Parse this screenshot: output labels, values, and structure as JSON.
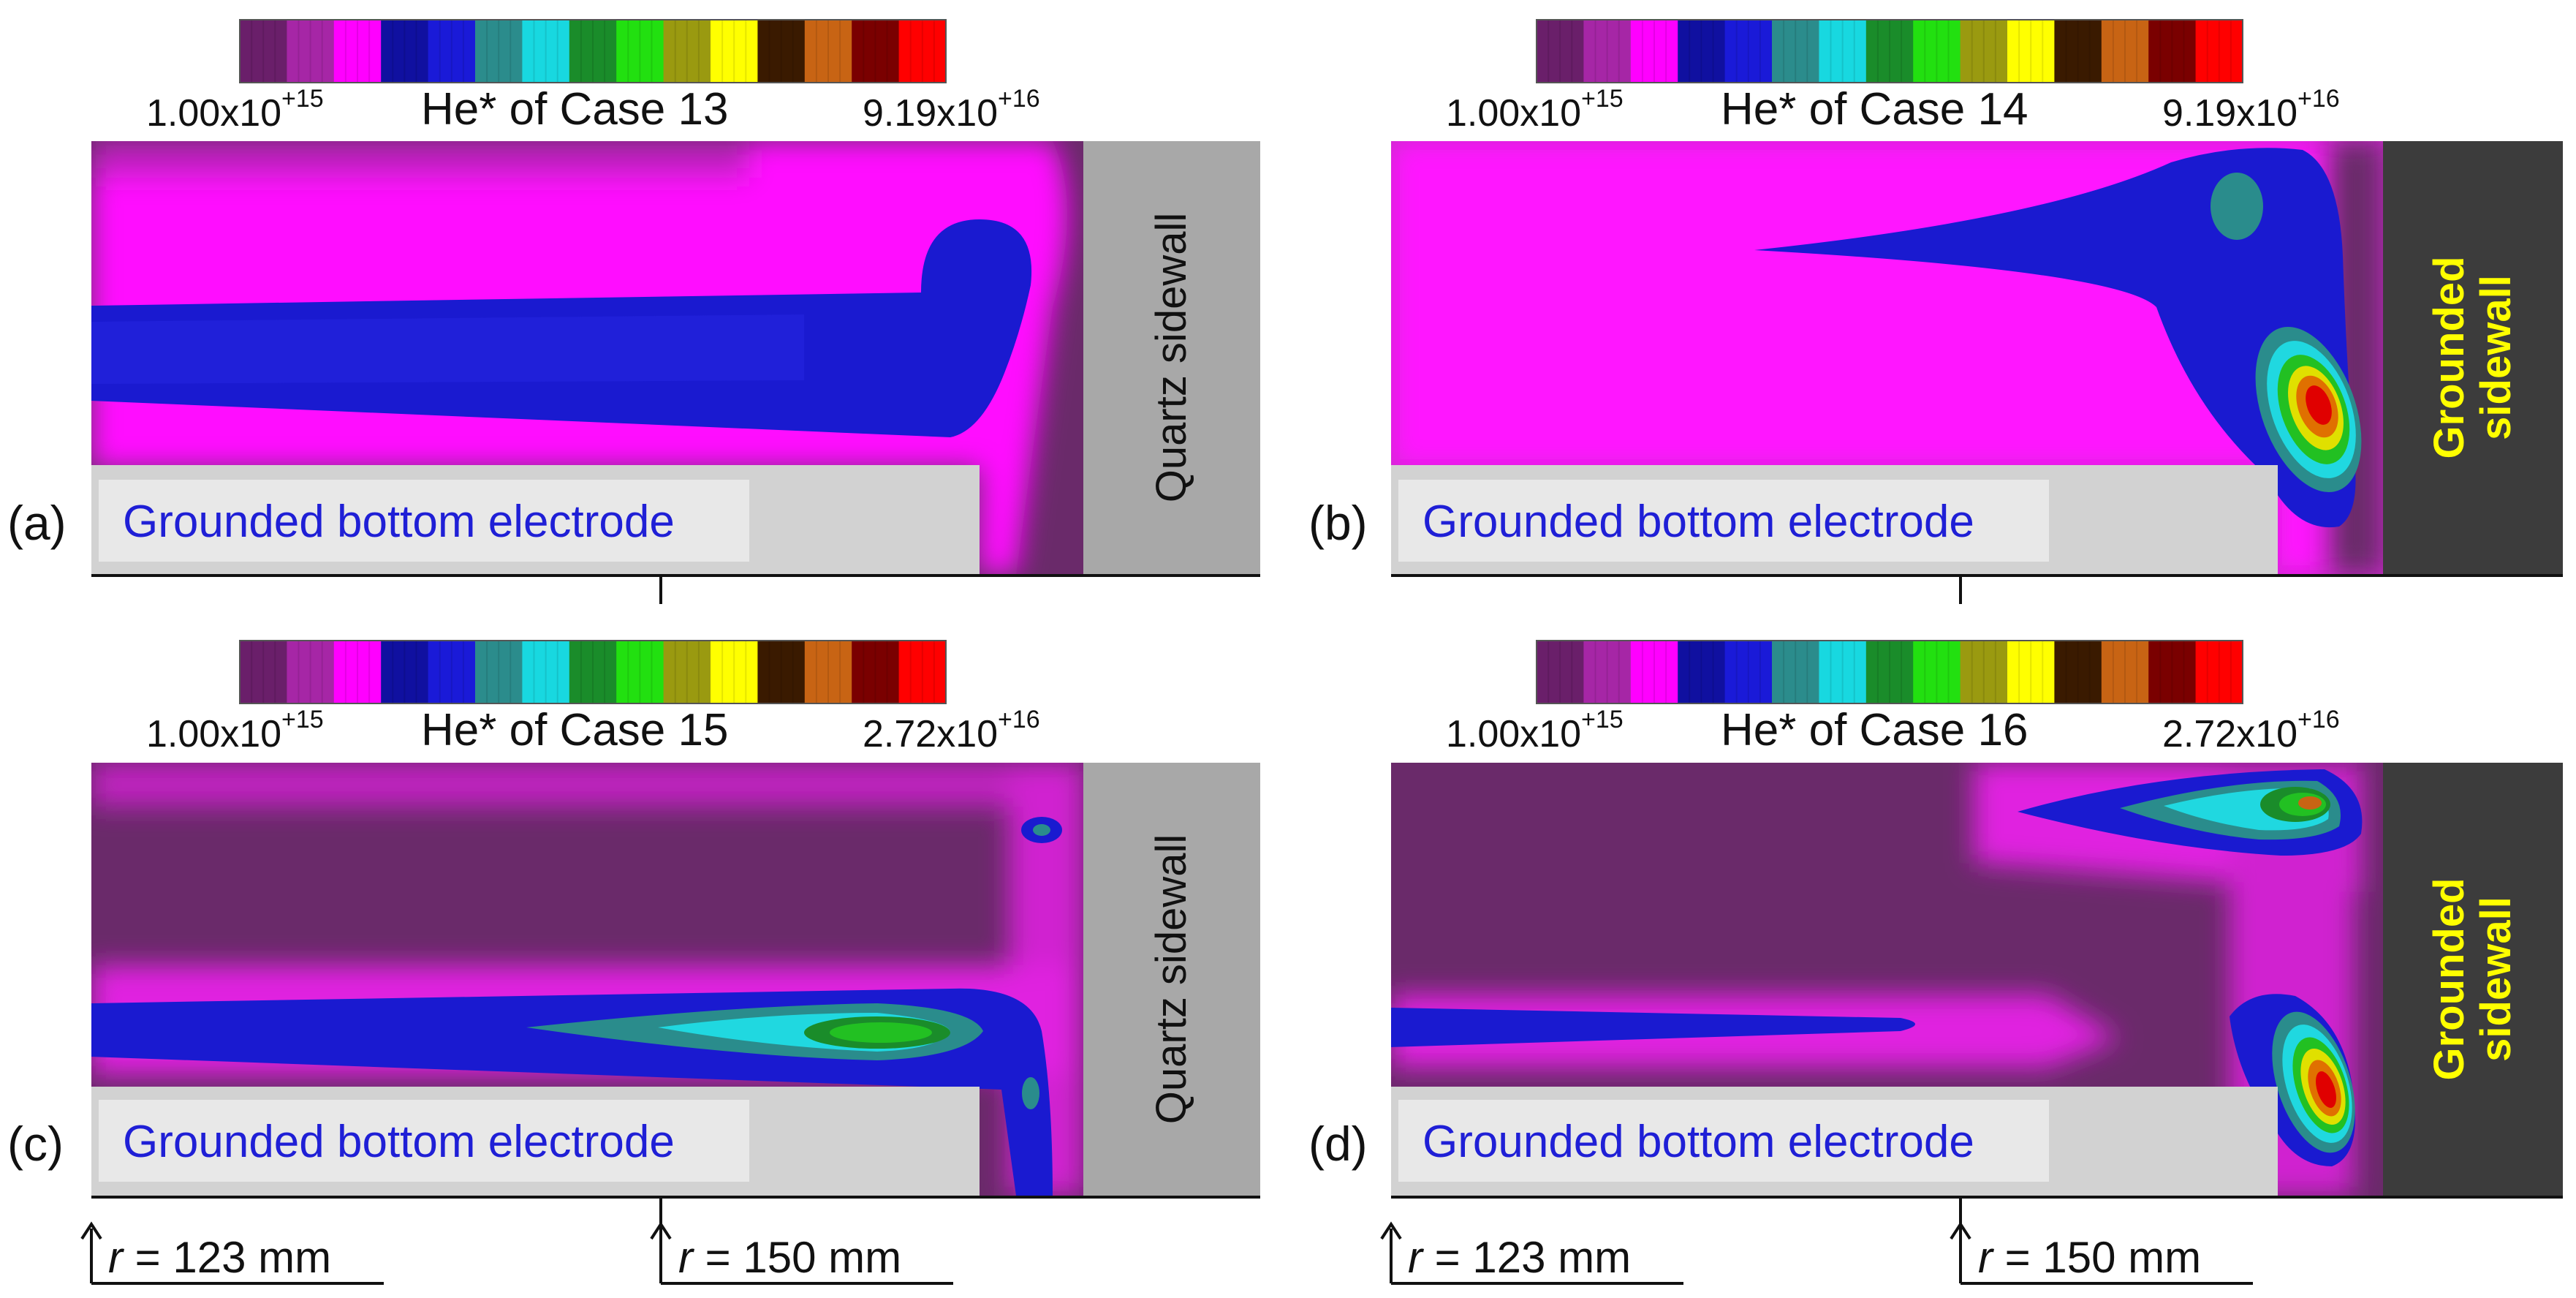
{
  "panels": [
    {
      "label": "(a)",
      "colorbar": {
        "min": "1.00x10",
        "min_exp": "+15",
        "title": "He* of Case 13",
        "max": "9.19x10",
        "max_exp": "+16"
      },
      "electrode": "Grounded bottom electrode",
      "sidewall": [
        "Quartz sidewall"
      ],
      "sidewall_type": "quartz"
    },
    {
      "label": "(b)",
      "colorbar": {
        "min": "1.00x10",
        "min_exp": "+15",
        "title": "He* of Case 14",
        "max": "9.19x10",
        "max_exp": "+16"
      },
      "electrode": "Grounded bottom electrode",
      "sidewall": [
        "Grounded",
        "sidewall"
      ],
      "sidewall_type": "grounded"
    },
    {
      "label": "(c)",
      "colorbar": {
        "min": "1.00x10",
        "min_exp": "+15",
        "title": "He* of Case 15",
        "max": "2.72x10",
        "max_exp": "+16"
      },
      "electrode": "Grounded bottom electrode",
      "sidewall": [
        "Quartz sidewall"
      ],
      "sidewall_type": "quartz"
    },
    {
      "label": "(d)",
      "colorbar": {
        "min": "1.00x10",
        "min_exp": "+15",
        "title": "He* of Case 16",
        "max": "2.72x10",
        "max_exp": "+16"
      },
      "electrode": "Grounded bottom electrode",
      "sidewall": [
        "Grounded",
        "sidewall"
      ],
      "sidewall_type": "grounded"
    }
  ],
  "radius_markers": {
    "r_symbol": "r",
    "r123": " = 123 mm",
    "r150": " = 150 mm"
  },
  "colorbar_colors": [
    "#6a1f6a",
    "#a626a6",
    "#ff00ff",
    "#1010a0",
    "#1a1ad8",
    "#2b8c8c",
    "#18d8e0",
    "#1a8c2a",
    "#22e010",
    "#9a9a10",
    "#ffff00",
    "#3a1a00",
    "#c86414",
    "#7a0000",
    "#ff0000"
  ],
  "colors": {
    "background": "#6a2a6a",
    "magenta": "#ff00ff",
    "blue": "#1a1ad0",
    "teal": "#2a8c8c",
    "cyan": "#1ee0e0",
    "green": "#22c022",
    "yellow": "#e0e000",
    "orange": "#e07000",
    "red": "#e00000",
    "electrode": "#d2d2d2",
    "electrode_label_box": "#e8e8e8",
    "quartz_wall": "#a8a8a8",
    "grounded_wall": "#3c3c3c",
    "sidewall_label_grounded": "#ffff00",
    "electrode_label_text": "#1f1fd6"
  }
}
